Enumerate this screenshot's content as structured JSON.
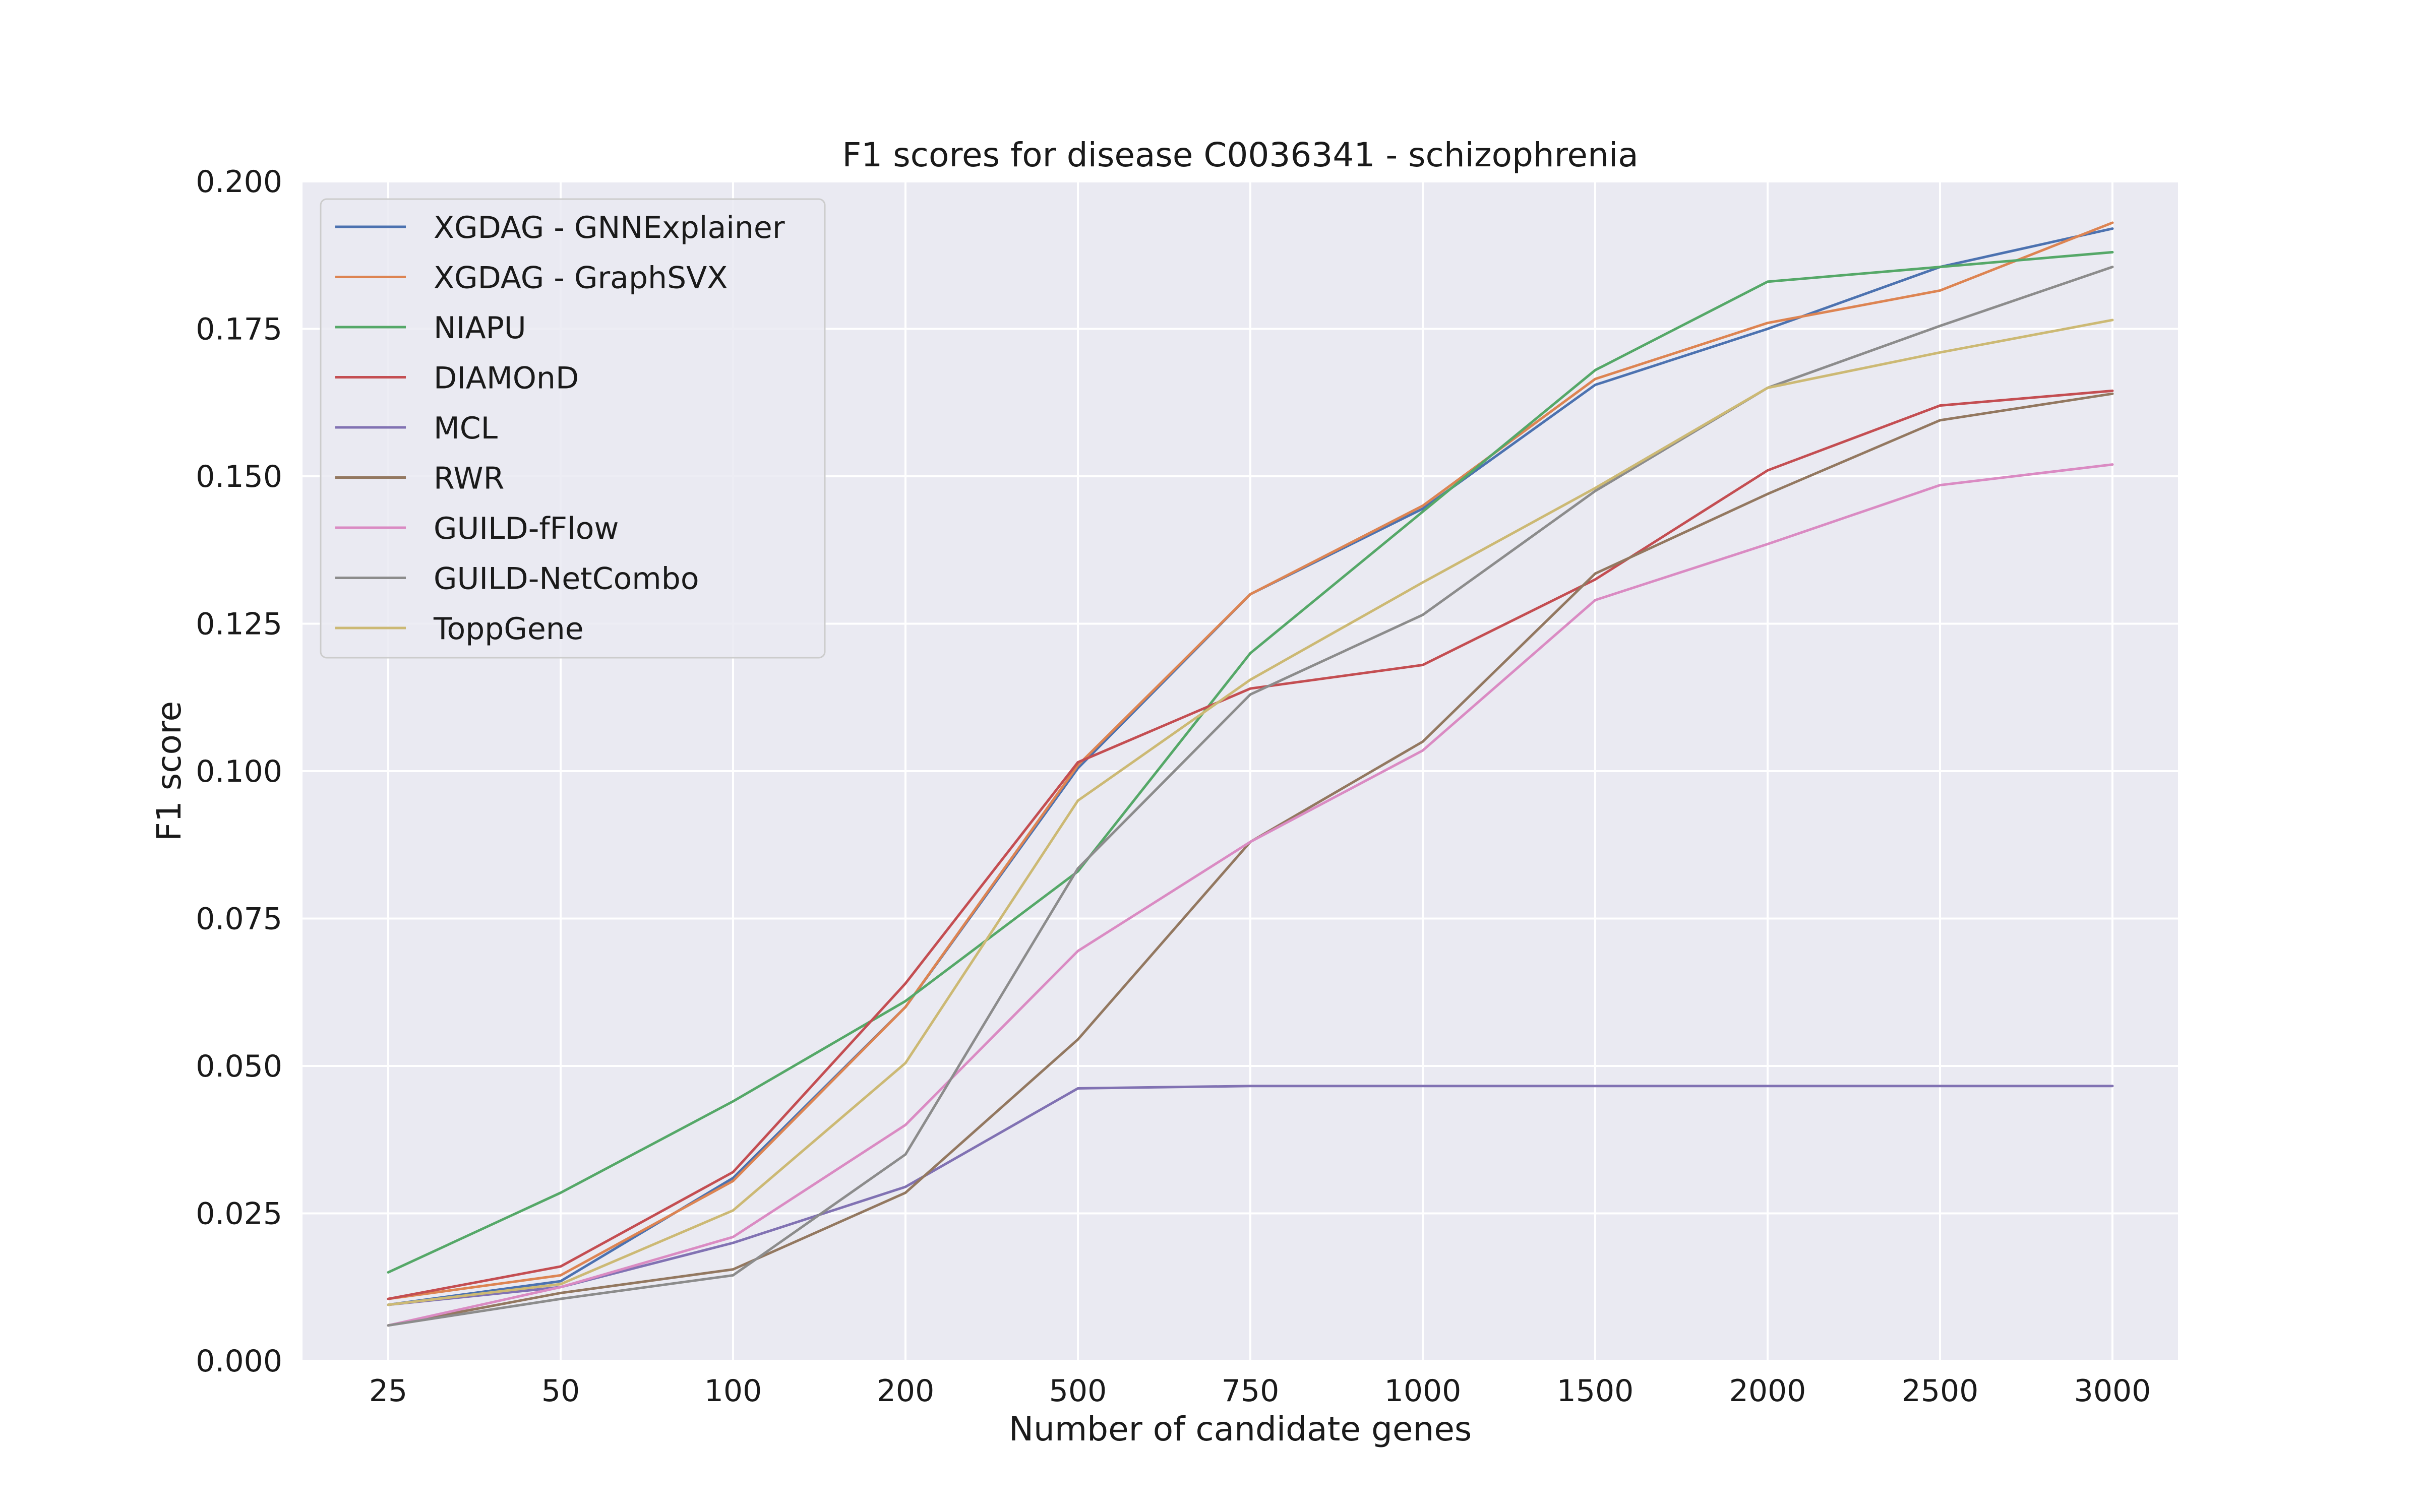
{
  "chart_data": {
    "type": "line",
    "title": "F1 scores for disease C0036341 - schizophrenia",
    "xlabel": "Number of candidate genes",
    "ylabel": "F1 score",
    "categories": [
      "25",
      "50",
      "100",
      "200",
      "500",
      "750",
      "1000",
      "1500",
      "2000",
      "2500",
      "3000"
    ],
    "ylim": [
      0,
      0.2
    ],
    "yticks": [
      0.0,
      0.025,
      0.05,
      0.075,
      0.1,
      0.125,
      0.15,
      0.175,
      0.2
    ],
    "ytick_labels": [
      "0.000",
      "0.025",
      "0.050",
      "0.075",
      "0.100",
      "0.125",
      "0.150",
      "0.175",
      "0.200"
    ],
    "grid": true,
    "legend_position": "top-left",
    "background": "#eaeaf2",
    "series": [
      {
        "name": "XGDAG - GNNExplainer",
        "color": "#4c72b0",
        "values": [
          0.0095,
          0.0135,
          0.031,
          0.06,
          0.1005,
          0.13,
          0.1445,
          0.1655,
          0.175,
          0.1855,
          0.192
        ]
      },
      {
        "name": "XGDAG - GraphSVX",
        "color": "#dd8452",
        "values": [
          0.0105,
          0.0145,
          0.0305,
          0.06,
          0.101,
          0.13,
          0.145,
          0.1665,
          0.176,
          0.1815,
          0.193
        ]
      },
      {
        "name": "NIAPU",
        "color": "#55a868",
        "values": [
          0.015,
          0.0285,
          0.044,
          0.061,
          0.083,
          0.12,
          0.144,
          0.168,
          0.183,
          0.1855,
          0.188
        ]
      },
      {
        "name": "DIAMOnD",
        "color": "#c44e52",
        "values": [
          0.0105,
          0.016,
          0.032,
          0.064,
          0.1015,
          0.114,
          0.118,
          0.1325,
          0.151,
          0.162,
          0.1645
        ]
      },
      {
        "name": "MCL",
        "color": "#8172b3",
        "values": [
          0.0095,
          0.0125,
          0.02,
          0.0295,
          0.0462,
          0.0466,
          0.0466,
          0.0466,
          0.0466,
          0.0466,
          0.0466
        ]
      },
      {
        "name": "RWR",
        "color": "#937860",
        "values": [
          0.006,
          0.0115,
          0.0155,
          0.0285,
          0.0545,
          0.088,
          0.105,
          0.1335,
          0.147,
          0.1595,
          0.164
        ]
      },
      {
        "name": "GUILD-fFlow",
        "color": "#da8bc3",
        "values": [
          0.006,
          0.0125,
          0.021,
          0.04,
          0.0695,
          0.088,
          0.1035,
          0.129,
          0.1385,
          0.1485,
          0.152
        ]
      },
      {
        "name": "GUILD-NetCombo",
        "color": "#8c8c8c",
        "values": [
          0.006,
          0.0105,
          0.0145,
          0.035,
          0.0835,
          0.113,
          0.1265,
          0.1475,
          0.165,
          0.1755,
          0.1855
        ]
      },
      {
        "name": "ToppGene",
        "color": "#ccb974",
        "values": [
          0.0095,
          0.013,
          0.0255,
          0.0505,
          0.095,
          0.1155,
          0.132,
          0.148,
          0.165,
          0.171,
          0.1765
        ]
      }
    ]
  }
}
